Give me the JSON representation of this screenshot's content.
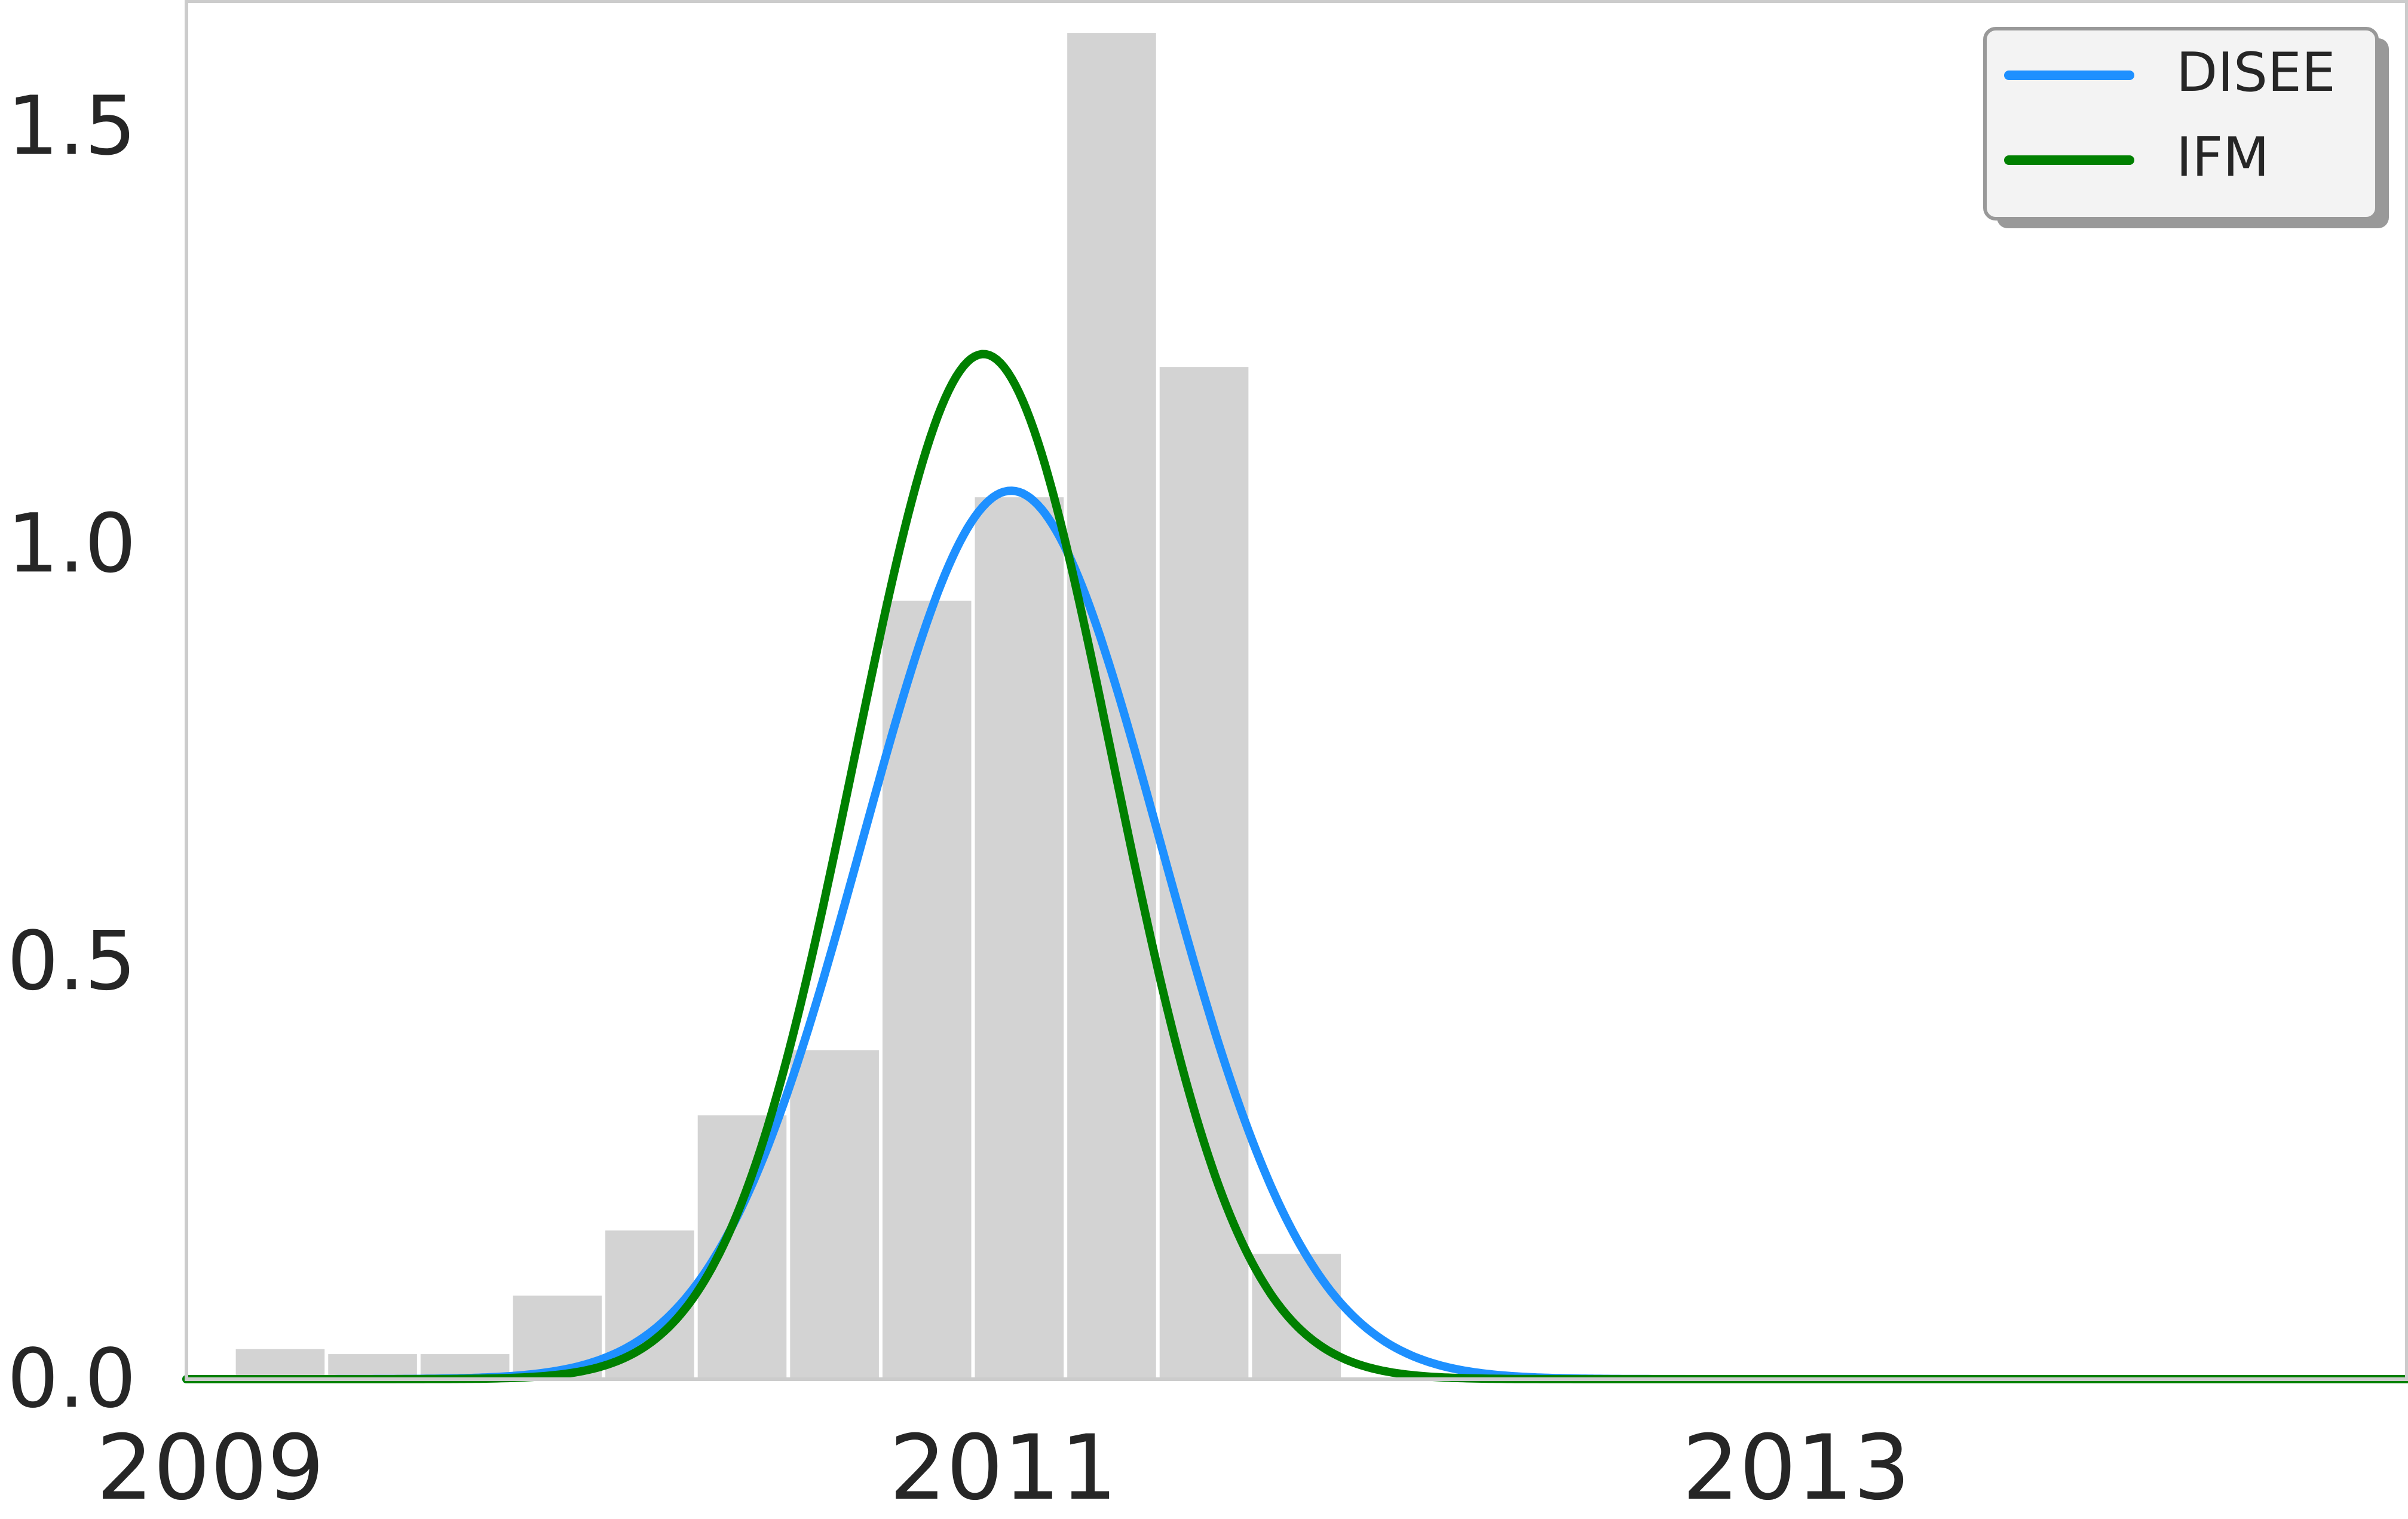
{
  "chart_data": {
    "type": "bar",
    "title": "",
    "xlabel": "",
    "ylabel": "",
    "xlim": [
      2009.0,
      2014.6
    ],
    "ylim": [
      0.0,
      1.65
    ],
    "grid": false,
    "legend_position": "top-right",
    "x_ticks": [
      {
        "value": 2009.0,
        "label": "2009"
      },
      {
        "value": 2011.0,
        "label": "2011"
      },
      {
        "value": 2013.0,
        "label": "2013"
      }
    ],
    "y_ticks": [
      {
        "value": 0.0,
        "label": "0.0"
      },
      {
        "value": 0.5,
        "label": "0.5"
      },
      {
        "value": 1.0,
        "label": "1.0"
      },
      {
        "value": 1.5,
        "label": "1.5"
      }
    ],
    "histogram": {
      "color": "#d3d3d3",
      "bin_width": 0.233,
      "bins": [
        {
          "x0": 2009.12,
          "value": 0.036
        },
        {
          "x0": 2009.353,
          "value": 0.03
        },
        {
          "x0": 2009.586,
          "value": 0.03
        },
        {
          "x0": 2009.819,
          "value": 0.1
        },
        {
          "x0": 2010.052,
          "value": 0.178
        },
        {
          "x0": 2010.285,
          "value": 0.316
        },
        {
          "x0": 2010.518,
          "value": 0.394
        },
        {
          "x0": 2010.751,
          "value": 0.932
        },
        {
          "x0": 2010.984,
          "value": 1.056
        },
        {
          "x0": 2011.217,
          "value": 1.612
        },
        {
          "x0": 2011.45,
          "value": 1.212
        },
        {
          "x0": 2011.683,
          "value": 0.15
        }
      ]
    },
    "series": [
      {
        "name": "DISEE",
        "kind": "normal_pdf",
        "mean": 2011.08,
        "std": 0.375,
        "color": "#1e90ff"
      },
      {
        "name": "IFM",
        "kind": "normal_pdf",
        "mean": 2011.01,
        "std": 0.325,
        "color": "#008000"
      }
    ]
  }
}
